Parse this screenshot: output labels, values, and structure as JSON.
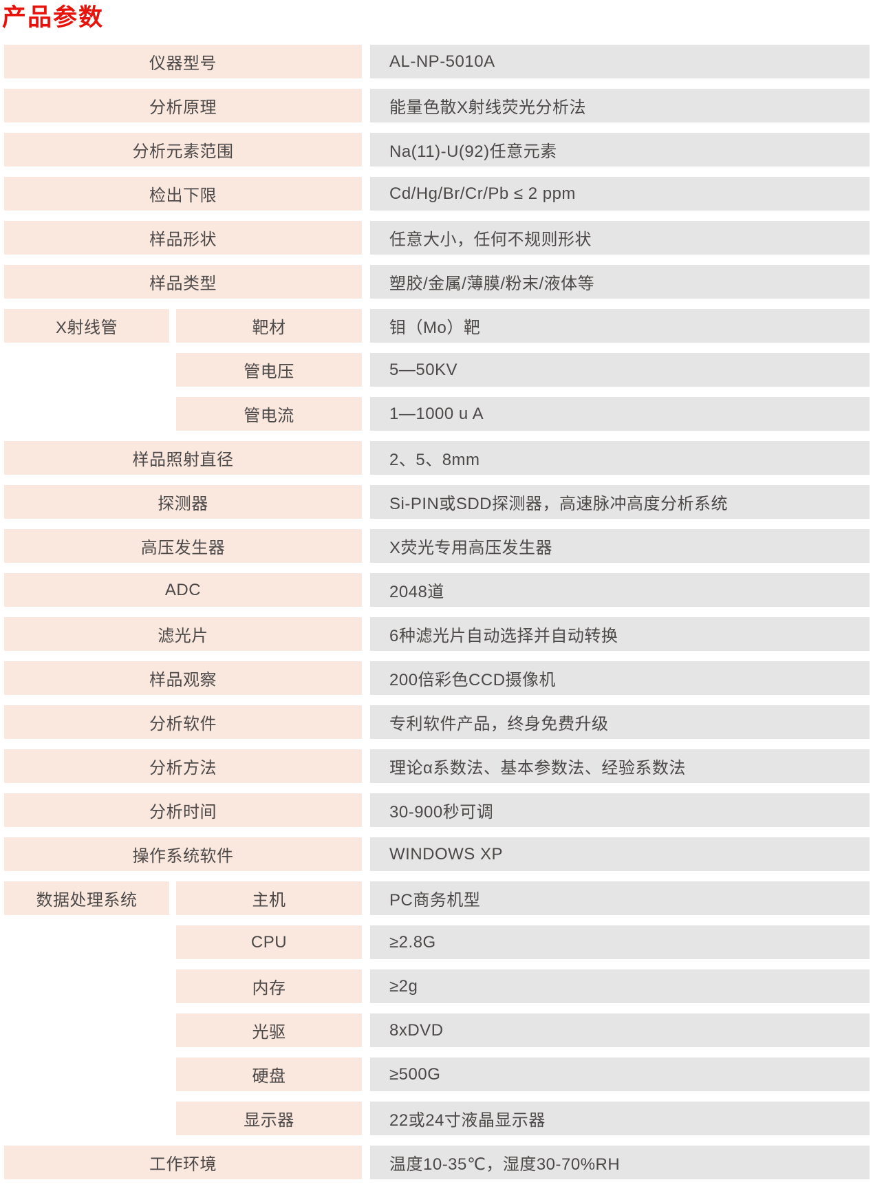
{
  "page": {
    "title": "产品参数"
  },
  "colors": {
    "title": "#e8120b",
    "label_bg": "#fae7de",
    "value_bg": "#e5e5e5",
    "text": "#4c4948"
  },
  "table": {
    "rows": [
      {
        "type": "simple",
        "label": "仪器型号",
        "value": "AL-NP-5010A"
      },
      {
        "type": "simple",
        "label": "分析原理",
        "value": "能量色散X射线荧光分析法"
      },
      {
        "type": "simple",
        "label": "分析元素范围",
        "value": "Na(11)-U(92)任意元素"
      },
      {
        "type": "simple",
        "label": "检出下限",
        "value": "Cd/Hg/Br/Cr/Pb ≤ 2 ppm"
      },
      {
        "type": "simple",
        "label": "样品形状",
        "value": "任意大小，任何不规则形状"
      },
      {
        "type": "simple",
        "label": "样品类型",
        "value": "塑胶/金属/薄膜/粉末/液体等"
      },
      {
        "type": "group",
        "label": "X射线管",
        "items": [
          {
            "label": "靶材",
            "value": "钼（Mo）靶"
          },
          {
            "label": "管电压",
            "value": "5—50KV"
          },
          {
            "label": "管电流",
            "value": "1—1000 u A"
          }
        ]
      },
      {
        "type": "simple",
        "label": "样品照射直径",
        "value": "2、5、8mm"
      },
      {
        "type": "simple",
        "label": "探测器",
        "value": "Si-PIN或SDD探测器，高速脉冲高度分析系统"
      },
      {
        "type": "simple",
        "label": "高压发生器",
        "value": "X荧光专用高压发生器"
      },
      {
        "type": "simple",
        "label": "ADC",
        "value": "2048道"
      },
      {
        "type": "simple",
        "label": "滤光片",
        "value": "6种滤光片自动选择并自动转换"
      },
      {
        "type": "simple",
        "label": "样品观察",
        "value": "200倍彩色CCD摄像机"
      },
      {
        "type": "simple",
        "label": "分析软件",
        "value": "专利软件产品，终身免费升级"
      },
      {
        "type": "simple",
        "label": "分析方法",
        "value": "理论α系数法、基本参数法、经验系数法"
      },
      {
        "type": "simple",
        "label": "分析时间",
        "value": "30-900秒可调"
      },
      {
        "type": "simple",
        "label": "操作系统软件",
        "value": "WINDOWS XP"
      },
      {
        "type": "group",
        "label": "数据处理系统",
        "items": [
          {
            "label": "主机",
            "value": "PC商务机型"
          },
          {
            "label": "CPU",
            "value": "≥2.8G"
          },
          {
            "label": "内存",
            "value": "≥2g"
          },
          {
            "label": "光驱",
            "value": "8xDVD"
          },
          {
            "label": "硬盘",
            "value": "≥500G"
          },
          {
            "label": "显示器",
            "value": "22或24寸液晶显示器"
          }
        ]
      },
      {
        "type": "simple",
        "label": "工作环境",
        "value": "温度10-35℃，湿度30-70%RH"
      }
    ]
  }
}
